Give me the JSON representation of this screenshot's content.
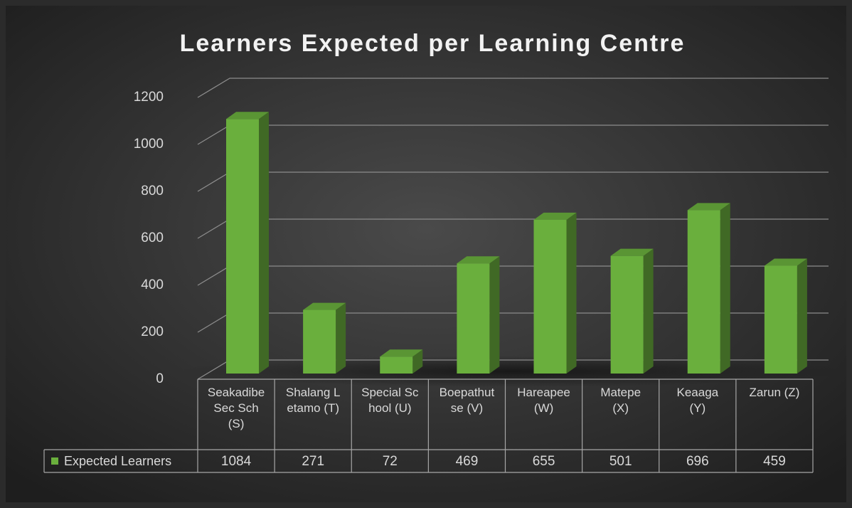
{
  "chart_data": {
    "type": "bar",
    "title": "Learners Expected per Learning Centre",
    "categories": [
      "Seakadibe Sec Sch (S)",
      "Shalang Letamo (T)",
      "Special School (U)",
      "Boepathutse (V)",
      "Hareapee (W)",
      "Matepe (X)",
      "Keaaga (Y)",
      "Zarun (Z)"
    ],
    "series": [
      {
        "name": "Expected Learners",
        "color": "#6aaf3d",
        "values": [
          1084,
          271,
          72,
          469,
          655,
          501,
          696,
          459
        ]
      }
    ],
    "ylim": [
      0,
      1200
    ],
    "yticks": [
      0,
      200,
      400,
      600,
      800,
      1000,
      1200
    ],
    "grid": true,
    "legend": "bottom"
  }
}
